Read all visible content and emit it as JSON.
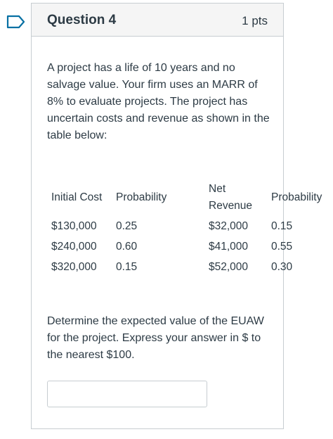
{
  "question": {
    "title": "Question 4",
    "points": "1 pts",
    "intro": "A project has a life of 10 years and no salvage value. Your firm uses an MARR of 8% to evaluate projects. The project has uncertain costs and revenue as shown in the table below:",
    "prompt": "Determine the expected value of the EUAW for the project. Express your answer in $ to the nearest $100."
  },
  "table": {
    "headers": {
      "initial_cost": "Initial Cost",
      "probability_1": "Probability",
      "net_line1": "Net",
      "net_line2": "Revenue",
      "probability_2": "Probability"
    },
    "rows": [
      {
        "cost": "$130,000",
        "p1": "0.25",
        "revenue": "$32,000",
        "p2": "0.15"
      },
      {
        "cost": "$240,000",
        "p1": "0.60",
        "revenue": "$41,000",
        "p2": "0.55"
      },
      {
        "cost": "$320,000",
        "p1": "0.15",
        "revenue": "$52,000",
        "p2": "0.30"
      }
    ]
  },
  "answer": {
    "value": ""
  },
  "colors": {
    "text": "#2d3b45",
    "border": "#c7cdd1",
    "header_bg": "#f5f5f5",
    "flag": "#0770a3"
  },
  "icons": {
    "flag": "bookmark-flag-icon"
  }
}
